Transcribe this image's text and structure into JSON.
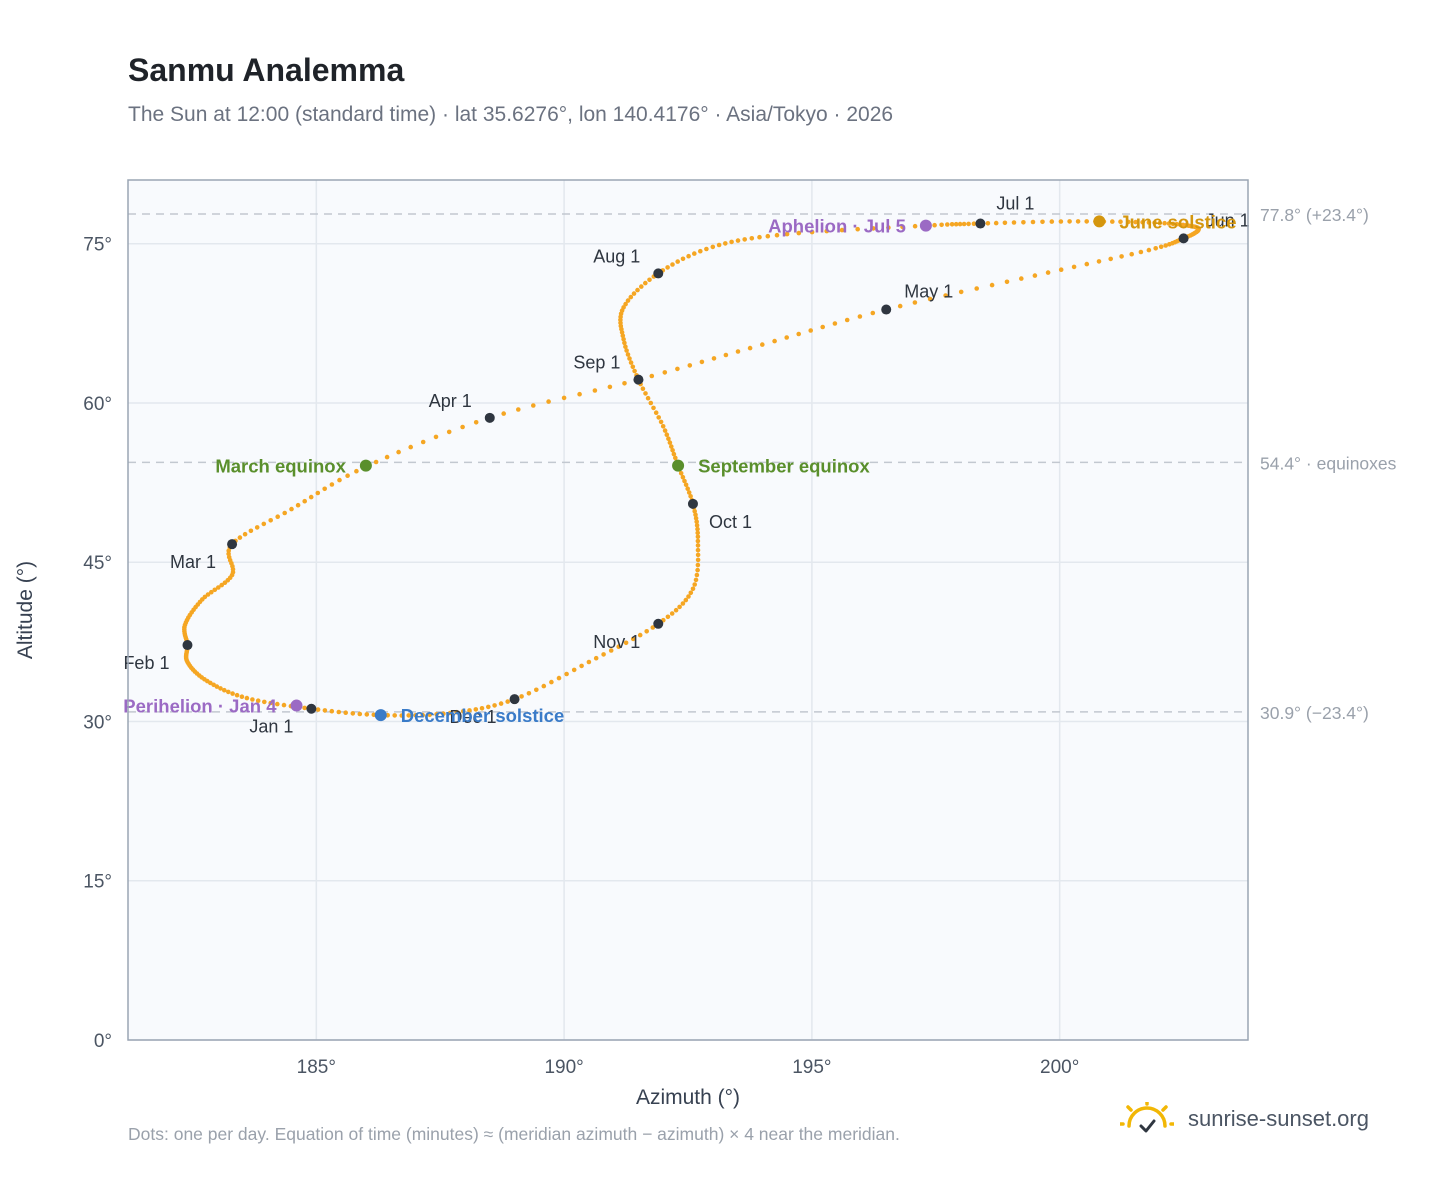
{
  "title": "Sanmu Analemma",
  "subtitle": "The Sun at 12:00 (standard time) · lat 35.6276°, lon 140.4176° · Asia/Tokyo · 2026",
  "footnote": "Dots: one per day. Equation of time (minutes) ≈ (meridian azimuth − azimuth) × 4 near the meridian.",
  "brand": "sunrise-sunset.org",
  "colors": {
    "curve": "#f5a623",
    "month_dot": "#2f3640",
    "equinox": "#5a8f2c",
    "june_solstice": "#d4960e",
    "december_solstice": "#3a7bc8",
    "apsis": "#9b6ac4",
    "plot_bg": "#f8fafd",
    "grid": "#e3e8ee",
    "ref_line": "#c2c8d0"
  },
  "chart_data": {
    "type": "scatter",
    "title": "Sanmu Analemma",
    "xlabel": "Azimuth (°)",
    "ylabel": "Altitude (°)",
    "xlim": [
      181.2,
      203.8
    ],
    "ylim": [
      0,
      81
    ],
    "xticks": [
      185,
      190,
      195,
      200
    ],
    "xtick_labels": [
      "185°",
      "190°",
      "195°",
      "200°"
    ],
    "yticks": [
      0,
      15,
      30,
      45,
      60,
      75
    ],
    "ytick_labels": [
      "0°",
      "15°",
      "30°",
      "45°",
      "60°",
      "75°"
    ],
    "grid": true,
    "series": [
      {
        "marker": "daily-dot",
        "points": [
          [
            184.9,
            31.2
          ],
          [
            183.6,
            32.2
          ],
          [
            182.8,
            33.8
          ],
          [
            182.4,
            35.6
          ],
          [
            182.4,
            37.2
          ],
          [
            182.35,
            39.1
          ],
          [
            182.7,
            41.5
          ],
          [
            183.3,
            43.8
          ],
          [
            183.3,
            46.7
          ],
          [
            184.5,
            50.0
          ],
          [
            186.0,
            54.0
          ],
          [
            188.5,
            58.6
          ],
          [
            191.5,
            62.2
          ],
          [
            194.0,
            65.5
          ],
          [
            196.5,
            68.8
          ],
          [
            199.5,
            72.0
          ],
          [
            201.8,
            74.4
          ],
          [
            202.5,
            75.5
          ],
          [
            202.8,
            76.3
          ],
          [
            202.6,
            76.7
          ],
          [
            201.8,
            77.0
          ],
          [
            200.2,
            77.1
          ],
          [
            198.4,
            76.9
          ],
          [
            197.3,
            76.7
          ],
          [
            194.5,
            75.9
          ],
          [
            193.0,
            74.7
          ],
          [
            191.9,
            72.2
          ],
          [
            191.2,
            69.0
          ],
          [
            191.2,
            66.0
          ],
          [
            191.5,
            62.2
          ],
          [
            192.0,
            57.8
          ],
          [
            192.3,
            54.1
          ],
          [
            192.6,
            50.5
          ],
          [
            192.7,
            47.0
          ],
          [
            192.6,
            42.5
          ],
          [
            191.9,
            39.2
          ],
          [
            190.5,
            35.6
          ],
          [
            189.0,
            32.1
          ],
          [
            187.7,
            30.8
          ],
          [
            186.3,
            30.6
          ],
          [
            184.9,
            31.2
          ]
        ]
      }
    ],
    "month_markers": [
      {
        "label": "Jan 1",
        "az": 184.9,
        "alt": 31.2
      },
      {
        "label": "Feb 1",
        "az": 182.4,
        "alt": 37.2
      },
      {
        "label": "Mar 1",
        "az": 183.3,
        "alt": 46.7
      },
      {
        "label": "Apr 1",
        "az": 188.5,
        "alt": 58.6
      },
      {
        "label": "May 1",
        "az": 196.5,
        "alt": 68.8
      },
      {
        "label": "Jun 1",
        "az": 202.5,
        "alt": 75.5
      },
      {
        "label": "Jul 1",
        "az": 198.4,
        "alt": 76.9
      },
      {
        "label": "Aug 1",
        "az": 191.9,
        "alt": 72.2
      },
      {
        "label": "Sep 1",
        "az": 191.5,
        "alt": 62.2
      },
      {
        "label": "Oct 1",
        "az": 192.6,
        "alt": 50.5
      },
      {
        "label": "Nov 1",
        "az": 191.9,
        "alt": 39.2
      },
      {
        "label": "Dec 1",
        "az": 189.0,
        "alt": 32.1
      }
    ],
    "events": [
      {
        "label": "March equinox",
        "az": 186.0,
        "alt": 54.1,
        "color_key": "equinox",
        "label_side": "left"
      },
      {
        "label": "September equinox",
        "az": 192.3,
        "alt": 54.1,
        "color_key": "equinox",
        "label_side": "right"
      },
      {
        "label": "June solstice",
        "az": 200.8,
        "alt": 77.1,
        "color_key": "june_solstice",
        "label_side": "right"
      },
      {
        "label": "December solstice",
        "az": 186.3,
        "alt": 30.6,
        "color_key": "december_solstice",
        "label_side": "right"
      },
      {
        "label": "Aphelion · Jul 5",
        "az": 197.3,
        "alt": 76.7,
        "color_key": "apsis",
        "label_side": "left"
      },
      {
        "label": "Perihelion · Jan 4",
        "az": 184.6,
        "alt": 31.5,
        "color_key": "apsis",
        "label_side": "left"
      }
    ],
    "reference_lines": [
      {
        "alt": 77.8,
        "label": "77.8° (+23.4°)"
      },
      {
        "alt": 54.4,
        "label": "54.4° · equinoxes"
      },
      {
        "alt": 30.9,
        "label": "30.9° (−23.4°)"
      }
    ]
  }
}
